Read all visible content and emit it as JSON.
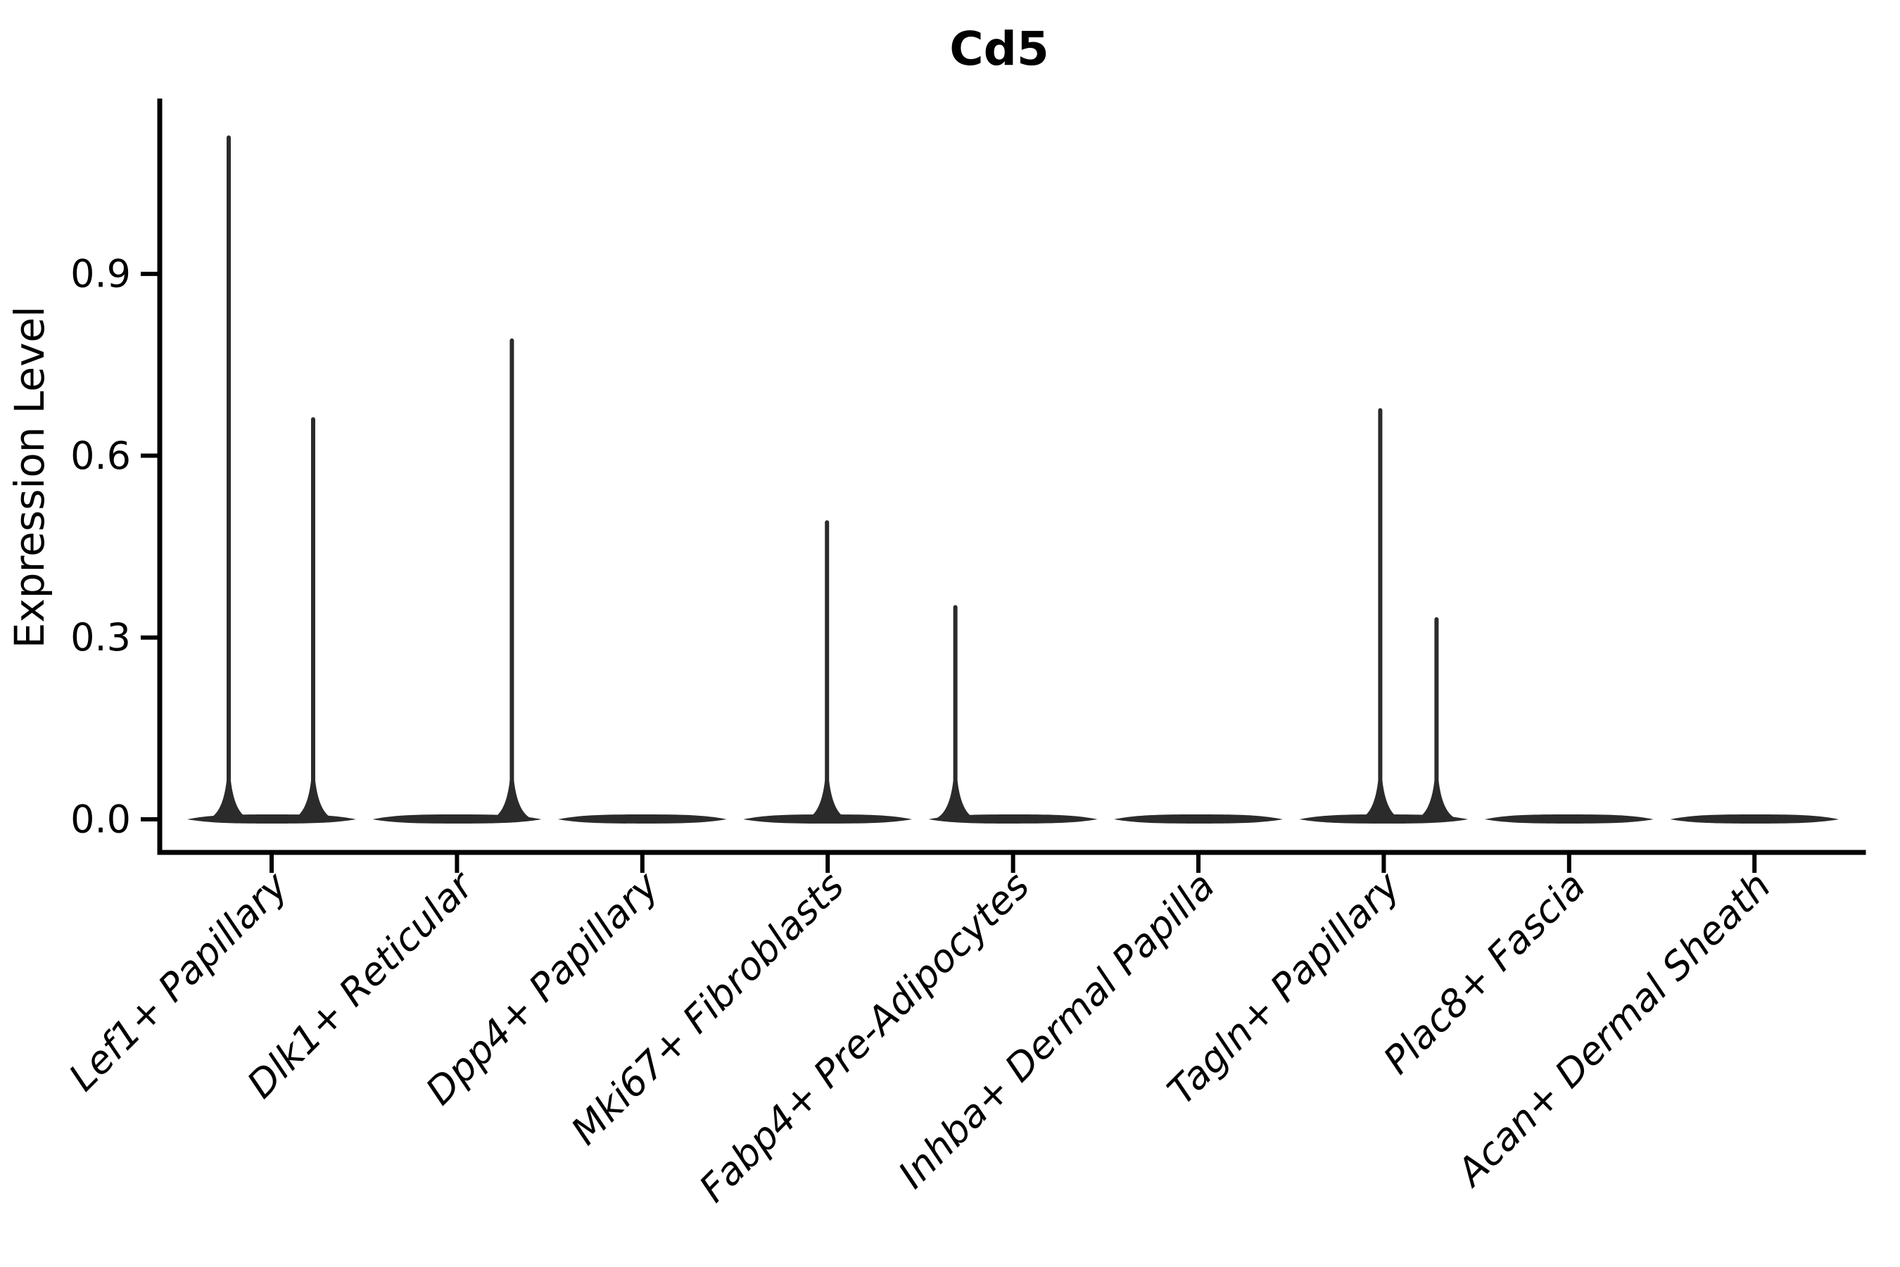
{
  "title": "Cd5",
  "chart_data": {
    "type": "violin",
    "title": "Cd5",
    "xlabel": "",
    "ylabel": "Expression Level",
    "ytick_labels": [
      "0.0",
      "0.3",
      "0.6",
      "0.9"
    ],
    "ytick_values": [
      0.0,
      0.3,
      0.6,
      0.9
    ],
    "ylim": [
      -0.055,
      1.18
    ],
    "grid": false,
    "legend_position": "none",
    "categories": [
      "Lef1+ Papillary",
      "Dlk1+ Reticular",
      "Dpp4+ Papillary",
      "Mki67+ Fibroblasts",
      "Fabp4+ Pre-Adipocytes",
      "Inhba+ Dermal Papilla",
      "Tagln+ Papillary",
      "Plac8+ Fascia",
      "Acan+ Dermal Sheath"
    ],
    "violins": [
      {
        "category": "Lef1+ Papillary",
        "base_value": 0.0,
        "spikes": [
          {
            "x_offset": -61,
            "max_value": 1.125
          },
          {
            "x_offset": 59,
            "max_value": 0.66
          }
        ]
      },
      {
        "category": "Dlk1+ Reticular",
        "base_value": 0.0,
        "spikes": [
          {
            "x_offset": 78,
            "max_value": 0.79
          }
        ]
      },
      {
        "category": "Dpp4+ Papillary",
        "base_value": 0.0,
        "spikes": []
      },
      {
        "category": "Mki67+ Fibroblasts",
        "base_value": 0.0,
        "spikes": [
          {
            "x_offset": -1,
            "max_value": 0.49
          }
        ]
      },
      {
        "category": "Fabp4+ Pre-Adipocytes",
        "base_value": 0.0,
        "spikes": [
          {
            "x_offset": -82,
            "max_value": 0.35
          }
        ]
      },
      {
        "category": "Inhba+ Dermal Papilla",
        "base_value": 0.0,
        "spikes": []
      },
      {
        "category": "Tagln+ Papillary",
        "base_value": 0.0,
        "spikes": [
          {
            "x_offset": -5,
            "max_value": 0.675
          },
          {
            "x_offset": 75,
            "max_value": 0.33
          }
        ]
      },
      {
        "category": "Plac8+ Fascia",
        "base_value": 0.0,
        "spikes": []
      },
      {
        "category": "Acan+ Dermal Sheath",
        "base_value": 0.0,
        "spikes": []
      }
    ],
    "colors": {
      "violin": "#2b2b2b",
      "axis": "#000000",
      "text": "#000000",
      "background": "#ffffff"
    }
  }
}
